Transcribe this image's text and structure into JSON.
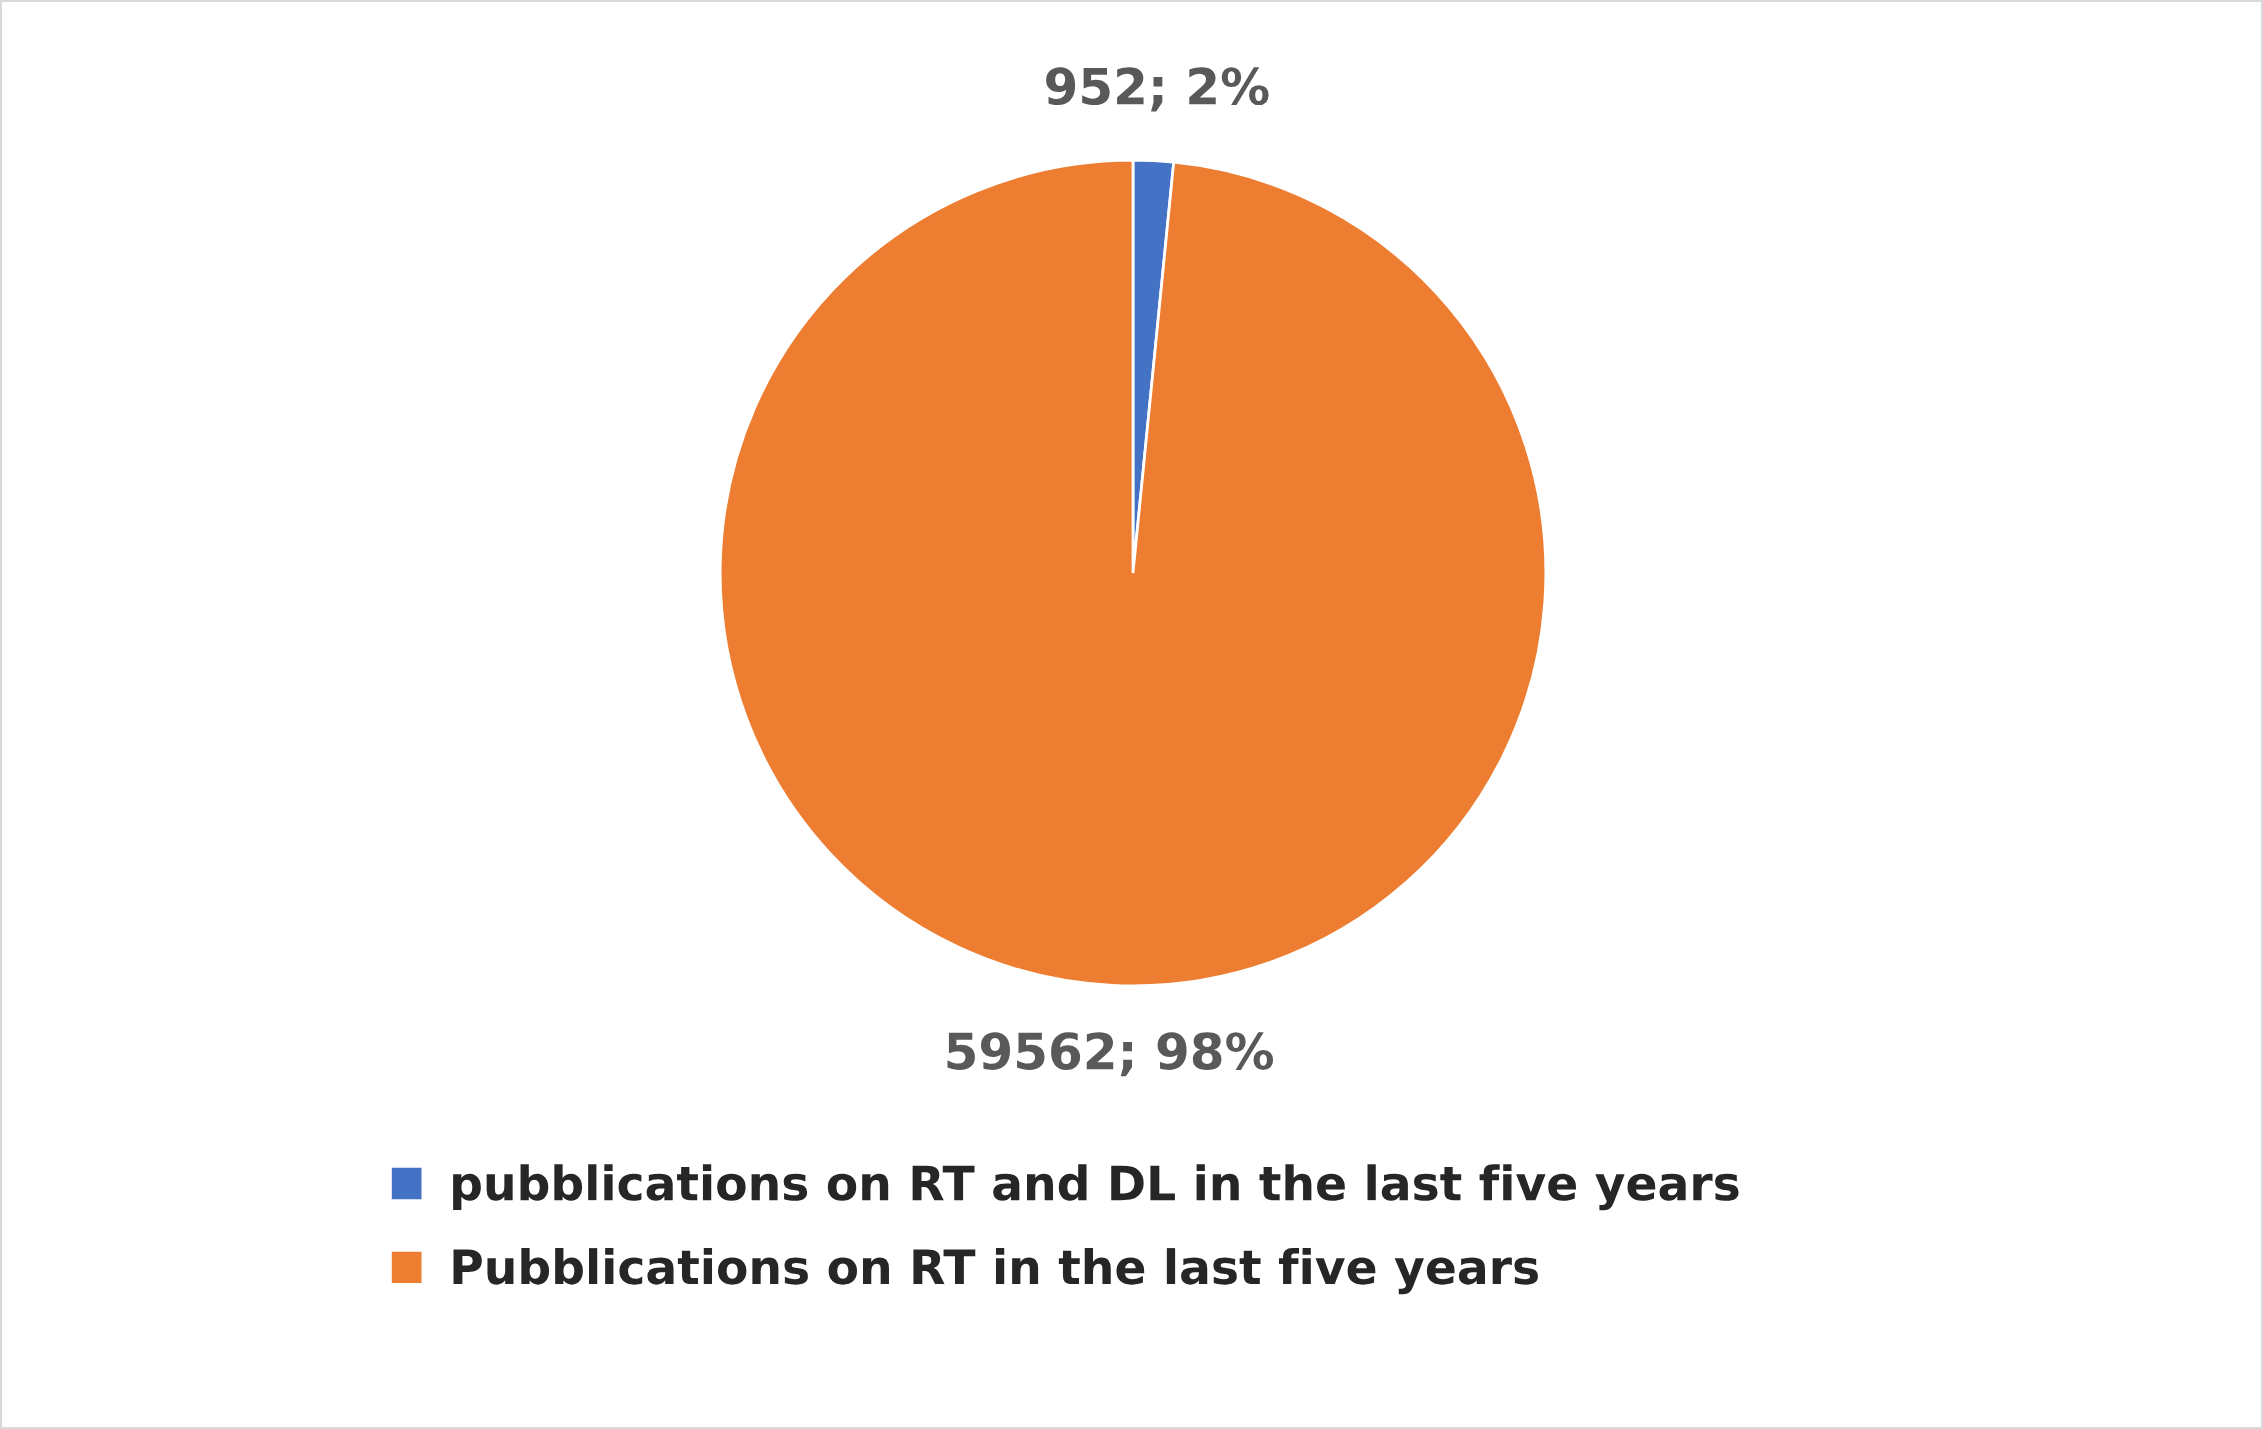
{
  "chart_data": {
    "type": "pie",
    "categories": [
      "pubblications on RT and DL in the last five years",
      "Pubblications on RT in the last five years"
    ],
    "values": [
      952,
      59562
    ],
    "colors": [
      "#4472c4",
      "#ed7d31"
    ],
    "value_labels": [
      "952; 2%",
      "59562; 98%"
    ],
    "legend": "bottom"
  }
}
